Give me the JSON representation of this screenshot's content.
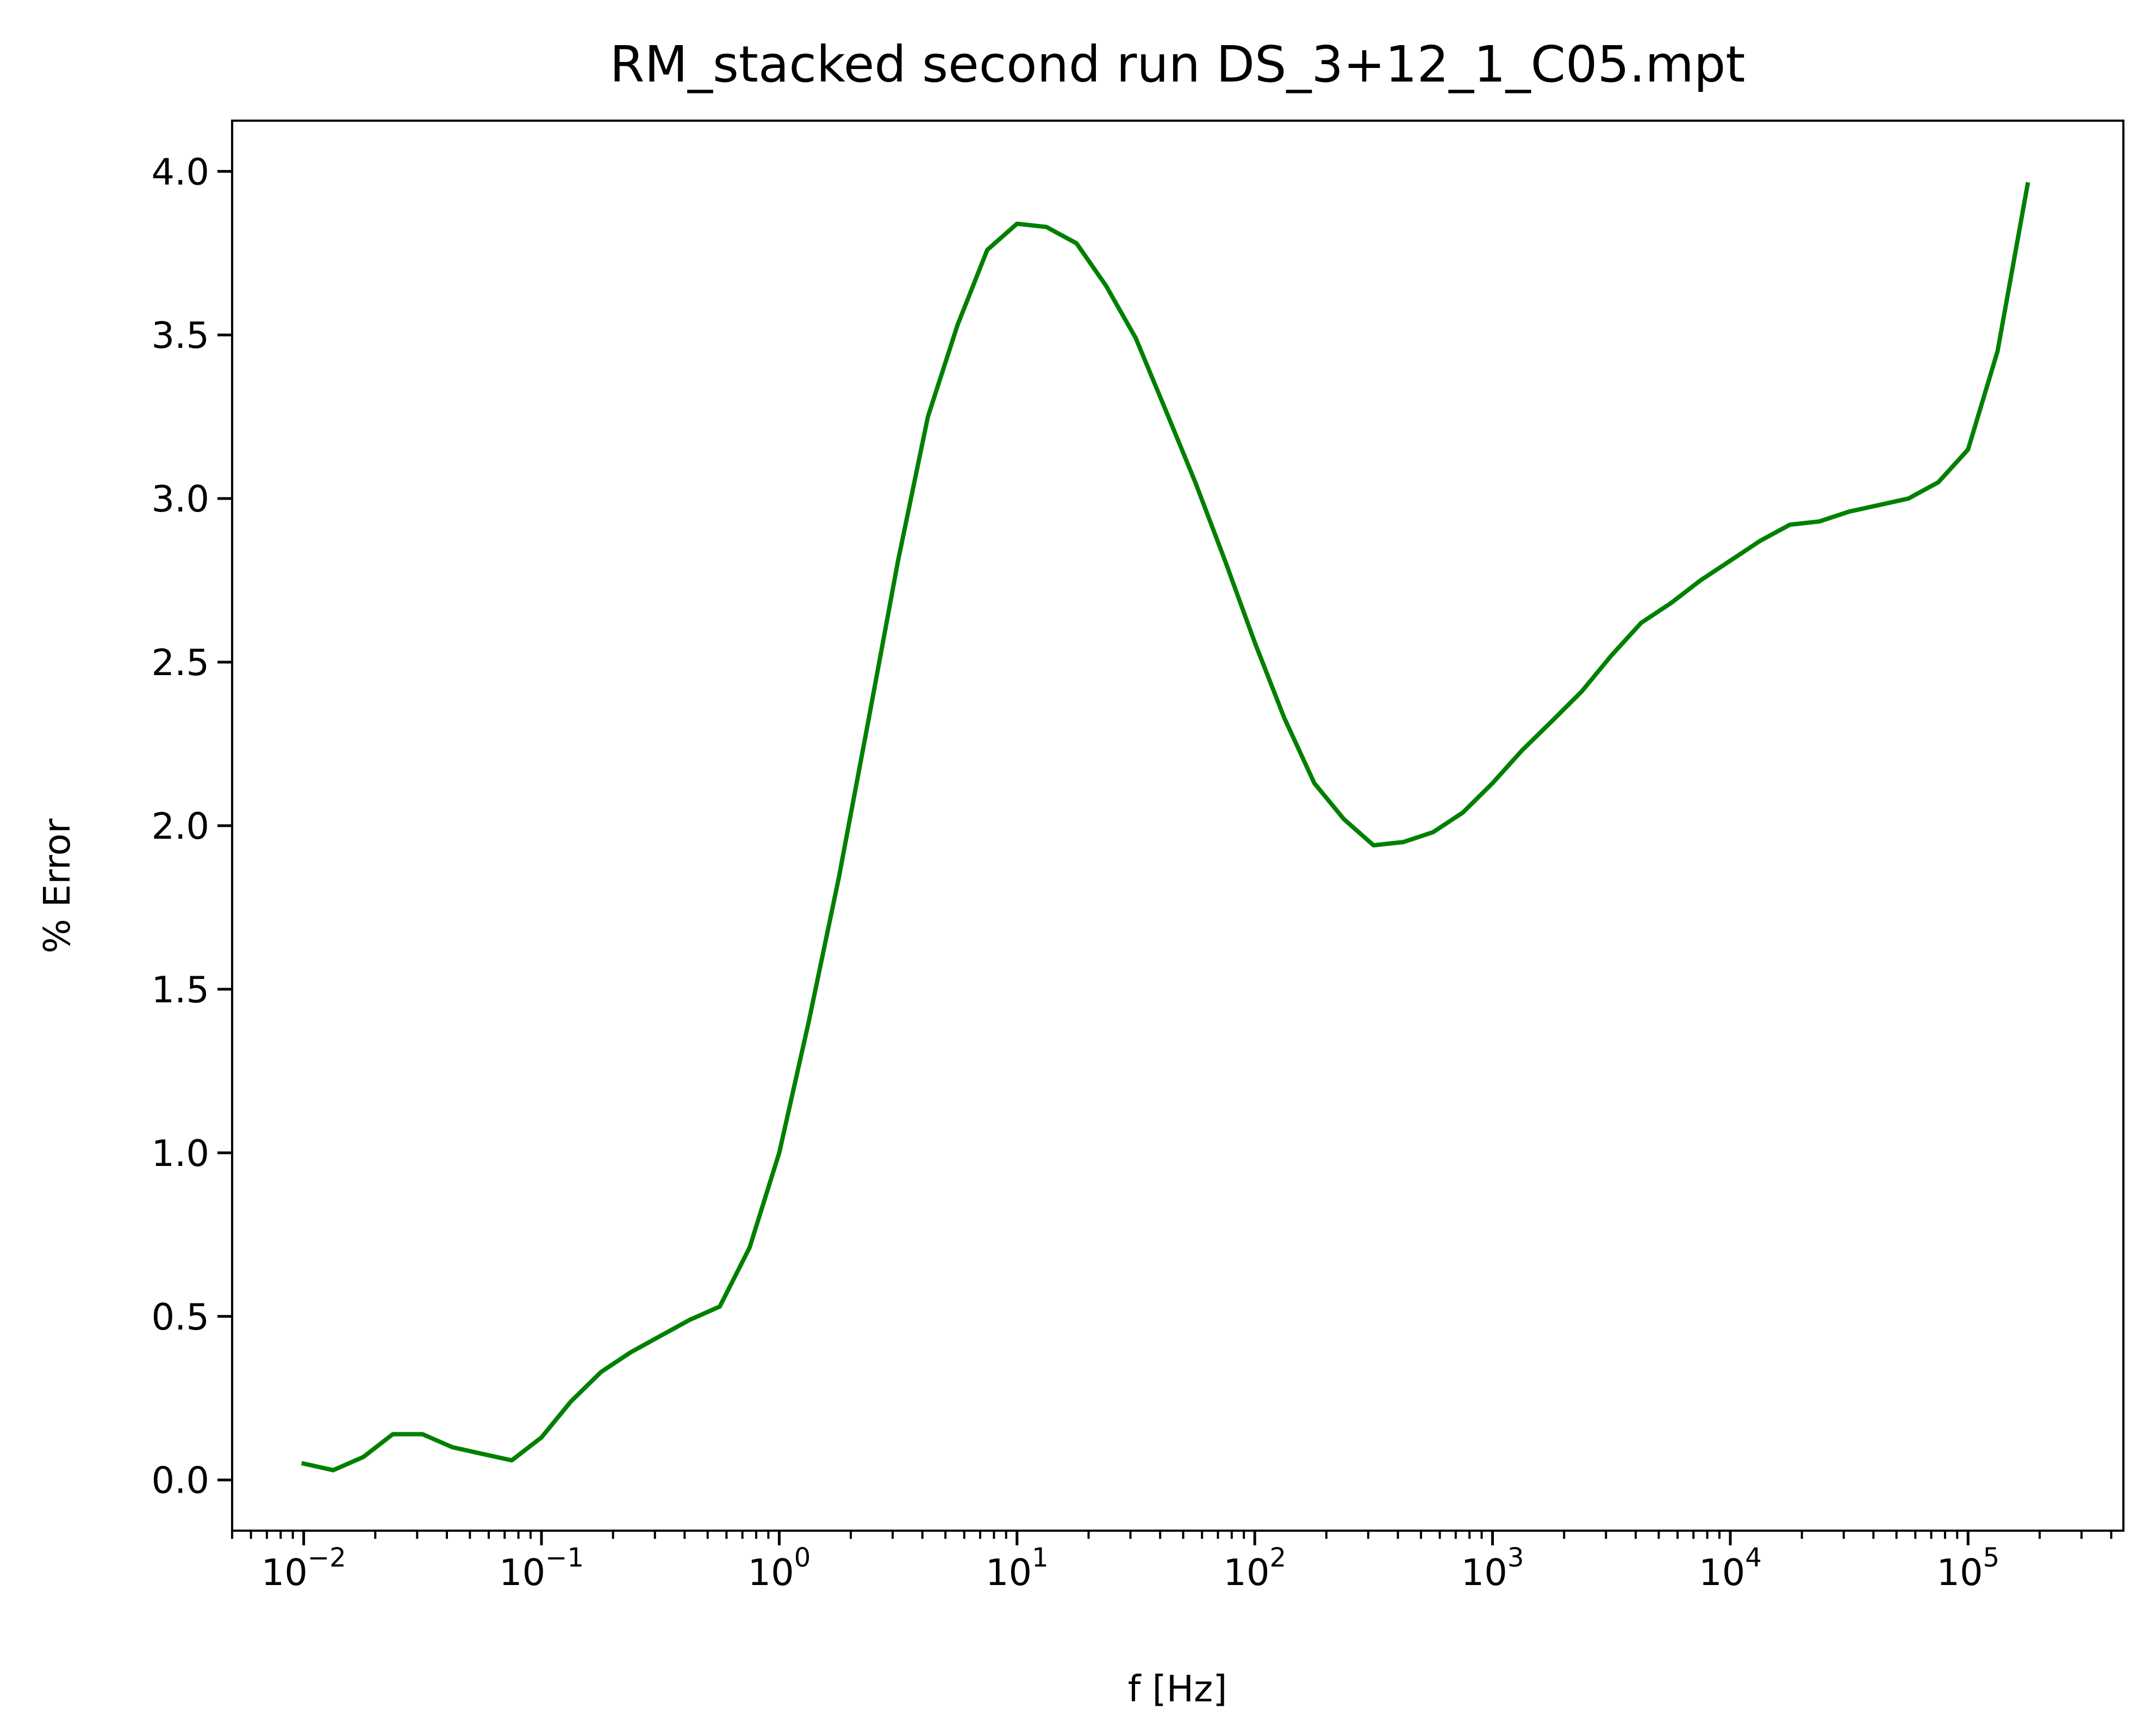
{
  "chart_data": {
    "type": "line",
    "title": "RM_stacked second run DS_3+12_1_C05.mpt",
    "xlabel": "f [Hz]",
    "ylabel": "% Error",
    "xscale": "log",
    "xlim": [
      0.005,
      450000
    ],
    "ylim": [
      -0.155,
      4.155
    ],
    "grid": false,
    "x_tick_labels": [
      "10",
      "10",
      "10",
      "10",
      "10",
      "10",
      "10",
      "10"
    ],
    "x_tick_exponents": [
      "−2",
      "−1",
      "0",
      "1",
      "2",
      "3",
      "4",
      "5"
    ],
    "y_tick_labels": [
      "0.0",
      "0.5",
      "1.0",
      "1.5",
      "2.0",
      "2.5",
      "3.0",
      "3.5",
      "4.0"
    ],
    "colors": {
      "series": "#008000",
      "axes": "#000000"
    },
    "series": [
      {
        "x": [
          0.01,
          0.0133,
          0.0178,
          0.0237,
          0.0316,
          0.0422,
          0.0562,
          0.075,
          0.1,
          0.133,
          0.178,
          0.237,
          0.316,
          0.422,
          0.562,
          0.75,
          1.0,
          1.33,
          1.78,
          2.37,
          3.16,
          4.22,
          5.62,
          7.5,
          10.0,
          13.3,
          17.8,
          23.7,
          31.6,
          42.2,
          56.2,
          75.0,
          100,
          133,
          178,
          237,
          316,
          422,
          562,
          750,
          1000,
          1330,
          1780,
          2370,
          3160,
          4220,
          5620,
          7500,
          10000,
          13300,
          17800,
          23700,
          31600,
          42200,
          56200,
          75000,
          100000,
          133000,
          178000
        ],
        "y": [
          0.05,
          0.03,
          0.07,
          0.14,
          0.14,
          0.1,
          0.08,
          0.06,
          0.13,
          0.24,
          0.33,
          0.39,
          0.44,
          0.49,
          0.53,
          0.71,
          1.0,
          1.4,
          1.84,
          2.32,
          2.81,
          3.25,
          3.53,
          3.76,
          3.84,
          3.83,
          3.78,
          3.65,
          3.49,
          3.27,
          3.05,
          2.81,
          2.56,
          2.33,
          2.13,
          2.02,
          1.94,
          1.95,
          1.98,
          2.04,
          2.13,
          2.23,
          2.32,
          2.41,
          2.52,
          2.62,
          2.68,
          2.75,
          2.81,
          2.87,
          2.92,
          2.93,
          2.96,
          2.98,
          3.0,
          3.05,
          3.15,
          3.45,
          3.96
        ]
      }
    ]
  }
}
